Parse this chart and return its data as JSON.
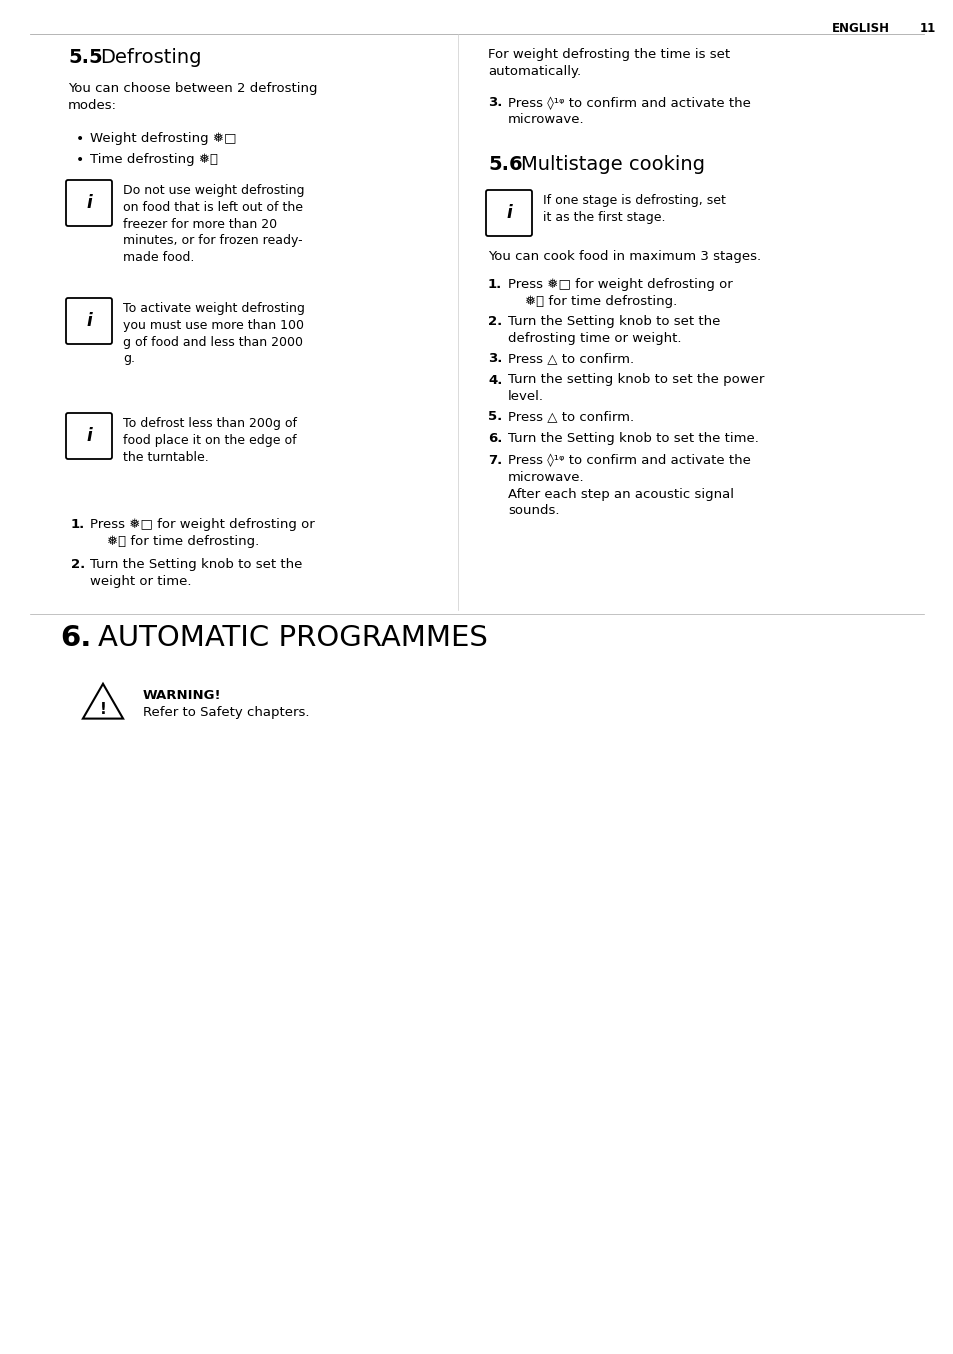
{
  "page_bg": "#ffffff",
  "text_color": "#000000",
  "header_text": "ENGLISH",
  "header_num": "11",
  "sec55_bold": "5.5",
  "sec55_normal": "Defrosting",
  "intro_text": "You can choose between 2 defrosting\nmodes:",
  "bullet1": "Weight defrosting ❅□",
  "bullet2": "Time defrosting ❅⏰",
  "info1": "Do not use weight defrosting\non food that is left out of the\nfreezer for more than 20\nminutes, or for frozen ready-\nmade food.",
  "info2": "To activate weight defrosting\nyou must use more than 100\ng of food and less than 2000\ng.",
  "info3": "To defrost less than 200g of\nfood place it on the edge of\nthe turntable.",
  "step1L": "Press ❅□ for weight defrosting or\n    ❅⏰ for time defrosting.",
  "step2L": "Turn the Setting knob to set the\nweight or time.",
  "right_intro": "For weight defrosting the time is set\nautomatically.",
  "step3R": "Press ◊ᵠ° to confirm and activate the\nmicrowave.",
  "sec56_bold": "5.6",
  "sec56_normal": "Multistage cooking",
  "info56": "If one stage is defrosting, set\nit as the first stage.",
  "sec56_intro": "You can cook food in maximum 3 stages.",
  "step1R": "Press ❅□ for weight defrosting or\n    ❅⏰ for time defrosting.",
  "step2R": "Turn the Setting knob to set the\ndefrosting time or weight.",
  "step3Rb": "Press △ to confirm.",
  "step4R": "Turn the setting knob to set the power\nlevel.",
  "step5R": "Press △ to confirm.",
  "step6R": "Turn the Setting knob to set the time.",
  "step7R": "Press ◊ᵠ° to confirm and activate the\nmicrowave.\nAfter each step an acoustic signal\nsounds.",
  "sec6_bold": "6.",
  "sec6_normal": "AUTOMATIC PROGRAMMES",
  "warn_title": "WARNING!",
  "warn_body": "Refer to Safety chapters."
}
